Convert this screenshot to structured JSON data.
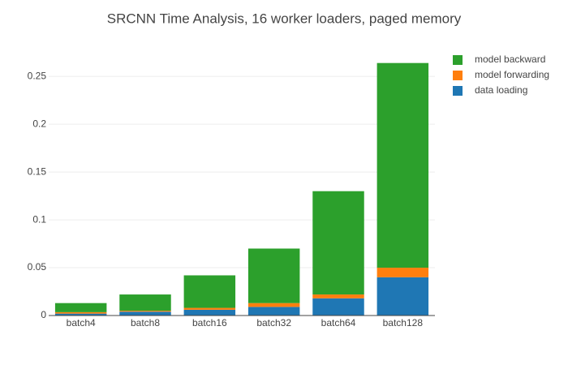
{
  "chart_data": {
    "type": "stacked_bar",
    "title": "SRCNN Time Analysis, 16 worker loaders, paged memory",
    "categories": [
      "batch4",
      "batch8",
      "batch16",
      "batch32",
      "batch64",
      "batch128"
    ],
    "series": [
      {
        "name": "data loading",
        "color": "#1f77b4",
        "values": [
          0.002,
          0.004,
          0.006,
          0.009,
          0.018,
          0.04
        ]
      },
      {
        "name": "model forwarding",
        "color": "#ff7f0e",
        "values": [
          0.0015,
          0.001,
          0.002,
          0.004,
          0.004,
          0.01
        ]
      },
      {
        "name": "model backward",
        "color": "#2ca02c",
        "values": [
          0.0095,
          0.017,
          0.034,
          0.057,
          0.108,
          0.214
        ]
      }
    ],
    "ylim": [
      0,
      0.279
    ],
    "yticks": [
      0,
      0.05,
      0.1,
      0.15,
      0.2,
      0.25
    ],
    "grid": true
  }
}
